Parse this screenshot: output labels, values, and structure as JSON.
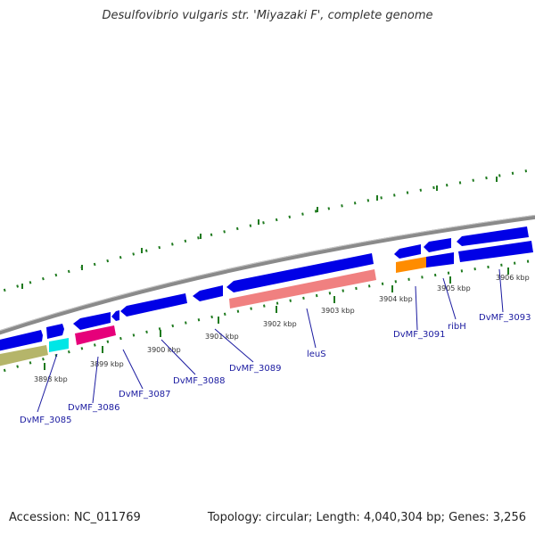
{
  "title": "Desulfovibrio vulgaris str. 'Miyazaki F', complete genome",
  "footer": {
    "accession": "Accession: NC_011769",
    "topology": "Topology: circular; Length: 4,040,304 bp; Genes: 3,256"
  },
  "scale": [
    {
      "label": "3898 kbp"
    },
    {
      "label": "3899 kbp"
    },
    {
      "label": "3900 kbp"
    },
    {
      "label": "3901 kbp"
    },
    {
      "label": "3902 kbp"
    },
    {
      "label": "3903 kbp"
    },
    {
      "label": "3904 kbp"
    },
    {
      "label": "3905 kbp"
    },
    {
      "label": "3906 kbp"
    }
  ],
  "genes": [
    {
      "label": "DvMF_3085"
    },
    {
      "label": "DvMF_3086"
    },
    {
      "label": "DvMF_3087"
    },
    {
      "label": "DvMF_3088"
    },
    {
      "label": "DvMF_3089"
    },
    {
      "label": "leuS"
    },
    {
      "label": "DvMF_3091"
    },
    {
      "label": "ribH"
    },
    {
      "label": "DvMF_3093"
    }
  ],
  "colors": {
    "backbone": "#8a8a8a",
    "forward_gene": "#0000e6",
    "reverse_gene": "#0000e6",
    "trna": "#f08080",
    "tick": "#1f7a1f",
    "olive": "#b5b56a",
    "cyan": "#00e6e6",
    "magenta": "#e6007a",
    "orange": "#ff8c00"
  }
}
